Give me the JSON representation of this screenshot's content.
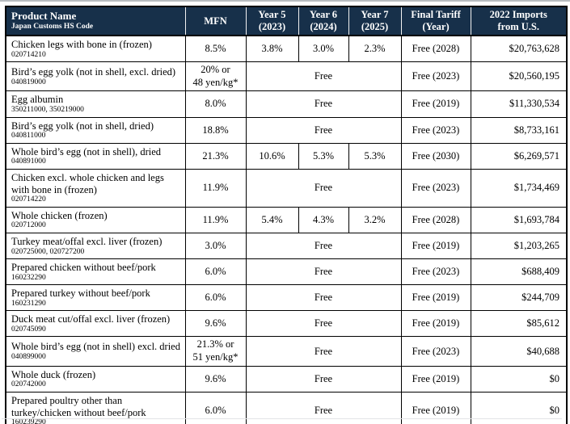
{
  "table": {
    "header": {
      "product_title": "Product Name",
      "product_subtitle": "Japan Customs HS Code",
      "cols": [
        {
          "line1": "MFN",
          "line2": ""
        },
        {
          "line1": "Year 5",
          "line2": "(2023)"
        },
        {
          "line1": "Year 6",
          "line2": "(2024)"
        },
        {
          "line1": "Year 7",
          "line2": "(2025)"
        },
        {
          "line1": "Final Tariff",
          "line2": "(Year)"
        },
        {
          "line1": "2022 Imports",
          "line2": "from U.S."
        }
      ]
    },
    "rows": [
      {
        "product": "Chicken legs with bone in (frozen)",
        "hs": "020714210",
        "mfn": "8.5%",
        "years": [
          "3.8%",
          "3.0%",
          "2.3%"
        ],
        "final": "Free (2028)",
        "imports": "$20,763,628"
      },
      {
        "product": "Bird’s egg yolk (not in shell, excl. dried)",
        "hs": "040819000",
        "mfn": [
          "20% or",
          "48 yen/kg*"
        ],
        "years": "Free",
        "final": "Free (2023)",
        "imports": "$20,560,195"
      },
      {
        "product": "Egg albumin",
        "hs": "350211000, 350219000",
        "mfn": "8.0%",
        "years": "Free",
        "final": "Free (2019)",
        "imports": "$11,330,534"
      },
      {
        "product": "Bird’s egg yolk (not in shell, dried)",
        "hs": "040811000",
        "mfn": "18.8%",
        "years": "Free",
        "final": "Free (2023)",
        "imports": "$8,733,161"
      },
      {
        "product": "Whole bird’s egg (not in shell), dried",
        "hs": "040891000",
        "mfn": "21.3%",
        "years": [
          "10.6%",
          "5.3%",
          "5.3%"
        ],
        "final": "Free (2030)",
        "imports": "$6,269,571"
      },
      {
        "product": "Chicken excl. whole chicken and legs with bone in (frozen)",
        "hs": "020714220",
        "mfn": "11.9%",
        "years": "Free",
        "final": "Free (2023)",
        "imports": "$1,734,469"
      },
      {
        "product": "Whole chicken (frozen)",
        "hs": "020712000",
        "mfn": "11.9%",
        "years": [
          "5.4%",
          "4.3%",
          "3.2%"
        ],
        "final": "Free (2028)",
        "imports": "$1,693,784"
      },
      {
        "product": "Turkey meat/offal excl. liver (frozen)",
        "hs": "020725000, 020727200",
        "mfn": "3.0%",
        "years": "Free",
        "final": "Free (2019)",
        "imports": "$1,203,265"
      },
      {
        "product": "Prepared chicken without beef/pork",
        "hs": "160232290",
        "mfn": "6.0%",
        "years": "Free",
        "final": "Free (2023)",
        "imports": "$688,409"
      },
      {
        "product": "Prepared turkey without beef/pork",
        "hs": "160231290",
        "mfn": "6.0%",
        "years": "Free",
        "final": "Free (2019)",
        "imports": "$244,709"
      },
      {
        "product": "Duck meat cut/offal excl. liver (frozen)",
        "hs": "020745090",
        "mfn": "9.6%",
        "years": "Free",
        "final": "Free (2019)",
        "imports": "$85,612"
      },
      {
        "product": "Whole bird’s egg (not in shell) excl. dried",
        "hs": "040899000",
        "mfn": [
          "21.3% or",
          "51 yen/kg*"
        ],
        "years": "Free",
        "final": "Free (2023)",
        "imports": "$40,688"
      },
      {
        "product": "Whole duck (frozen)",
        "hs": "020742000",
        "mfn": "9.6%",
        "years": "Free",
        "final": "Free (2019)",
        "imports": "$0"
      },
      {
        "product": "Prepared poultry other than turkey/chicken without beef/pork",
        "hs": "160239290",
        "mfn": "6.0%",
        "years": "Free",
        "final": "Free (2019)",
        "imports": "$0"
      }
    ]
  },
  "colors": {
    "header_bg": "#17304a",
    "header_text": "#ffffff",
    "border": "#000000"
  }
}
